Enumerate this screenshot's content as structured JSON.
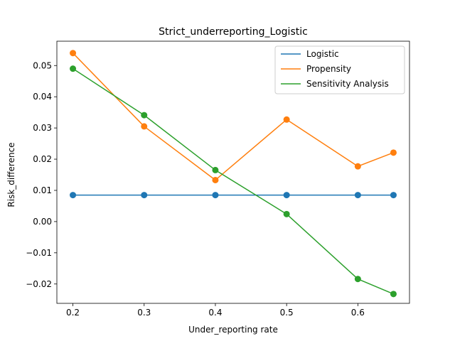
{
  "chart_data": {
    "type": "line",
    "title": "Strict_underreporting_Logistic",
    "xlabel": "Under_reporting rate",
    "ylabel": "Risk_difference",
    "x": [
      0.2,
      0.3,
      0.4,
      0.5,
      0.6,
      0.65
    ],
    "xticks": [
      "0.2",
      "0.3",
      "0.4",
      "0.5",
      "0.6"
    ],
    "yticks": [
      "−0.02",
      "−0.01",
      "0.00",
      "0.01",
      "0.02",
      "0.03",
      "0.04",
      "0.05"
    ],
    "xlim": [
      0.1775,
      0.6725
    ],
    "ylim": [
      -0.0262,
      0.0578
    ],
    "grid": false,
    "legend_position": "upper right",
    "markers": true,
    "series": [
      {
        "name": "Logistic",
        "color": "#1f77b4",
        "values": [
          0.0085,
          0.0085,
          0.0085,
          0.0085,
          0.0085,
          0.0085
        ]
      },
      {
        "name": "Propensity",
        "color": "#ff7f0e",
        "values": [
          0.054,
          0.0305,
          0.0133,
          0.0327,
          0.0177,
          0.0221
        ]
      },
      {
        "name": "Sensitivity Analysis",
        "color": "#2ca02c",
        "values": [
          0.049,
          0.0341,
          0.0165,
          0.0024,
          -0.0184,
          -0.0232
        ]
      }
    ]
  }
}
